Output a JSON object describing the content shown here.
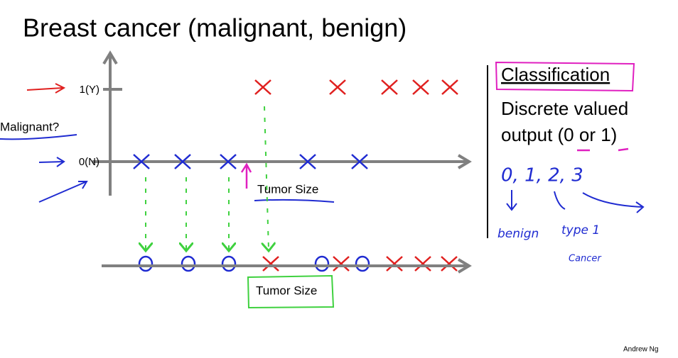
{
  "title": "Breast cancer (malignant, benign)",
  "top_plot": {
    "y_axis_label": "Malignant?",
    "y_labels": [
      "1(Y)",
      "0(N)"
    ],
    "x_axis_label": "Tumor Size"
  },
  "bottom_plot": {
    "x_axis_label": "Tumor Size"
  },
  "side_notes": {
    "heading": "Classification",
    "lines": [
      "Discrete valued",
      "output (0 or 1)"
    ],
    "handwritten": {
      "classes": "0, 1, 2, 3",
      "labels": [
        "benign",
        "type 1",
        "Cancer"
      ]
    }
  },
  "footer": "Andrew Ng"
}
